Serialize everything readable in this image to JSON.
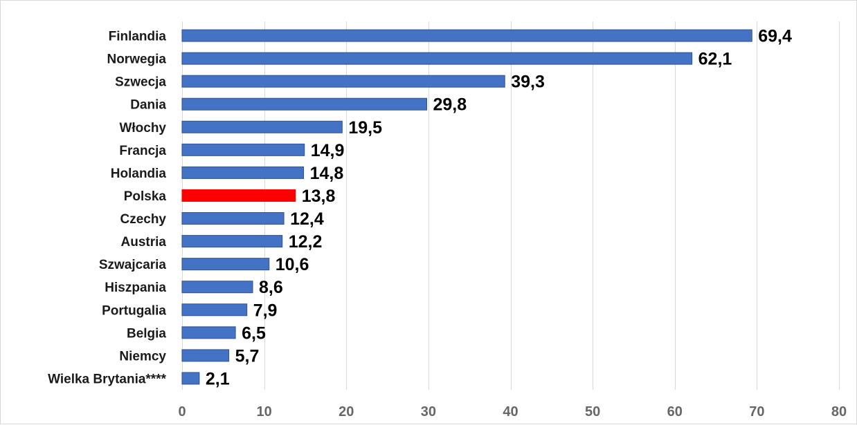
{
  "chart_data": {
    "type": "bar",
    "orientation": "horizontal",
    "categories": [
      "Finlandia",
      "Norwegia",
      "Szwecja",
      "Dania",
      "Włochy",
      "Francja",
      "Holandia",
      "Polska",
      "Czechy",
      "Austria",
      "Szwajcaria",
      "Hiszpania",
      "Portugalia",
      "Belgia",
      "Niemcy",
      "Wielka Brytania****"
    ],
    "values": [
      69.4,
      62.1,
      39.3,
      29.8,
      19.5,
      14.9,
      14.8,
      13.8,
      12.4,
      12.2,
      10.6,
      8.6,
      7.9,
      6.5,
      5.7,
      2.1
    ],
    "value_labels": [
      "69,4",
      "62,1",
      "39,3",
      "29,8",
      "19,5",
      "14,9",
      "14,8",
      "13,8",
      "12,4",
      "12,2",
      "10,6",
      "8,6",
      "7,9",
      "6,5",
      "5,7",
      "2,1"
    ],
    "highlight_category": "Polska",
    "xlim": [
      0,
      80
    ],
    "x_ticks": [
      0,
      10,
      20,
      30,
      40,
      50,
      60,
      70,
      80
    ],
    "x_tick_labels": [
      "0",
      "10",
      "20",
      "30",
      "40",
      "50",
      "60",
      "70",
      "80"
    ],
    "grid": "vertical",
    "legend": "none",
    "title": "",
    "xlabel": "",
    "ylabel": "",
    "colors": {
      "bar": "#4472c4",
      "highlight": "#ff0000",
      "bar_border": "#2f528f",
      "gridline": "#d9d9d9"
    }
  }
}
